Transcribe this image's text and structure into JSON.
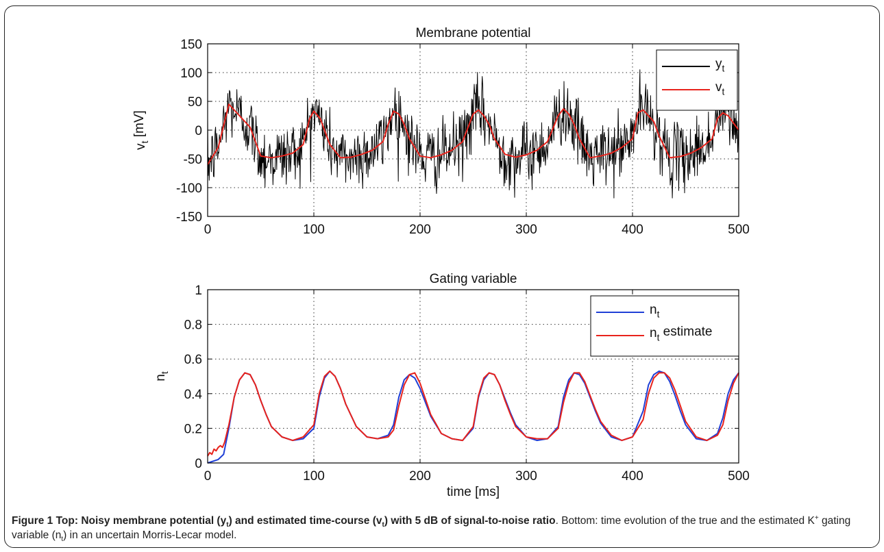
{
  "chart_data": [
    {
      "type": "line",
      "title": "Membrane potential",
      "xlabel": "",
      "ylabel": {
        "main": "v",
        "sub": "t",
        "unit": " [mV]"
      },
      "xlim": [
        0,
        500
      ],
      "ylim": [
        -150,
        150
      ],
      "xticks": [
        0,
        100,
        200,
        300,
        400,
        500
      ],
      "yticks": [
        -150,
        -100,
        -50,
        0,
        50,
        100,
        150
      ],
      "grid": true,
      "legend_position": "top-right",
      "series": [
        {
          "name": {
            "main": "y",
            "sub": "t"
          },
          "color": "#000000",
          "style": "noisy observation of v_t",
          "noise_std_mV": 28,
          "x_step_ms": 0.5
        },
        {
          "name": {
            "main": "v",
            "sub": "t"
          },
          "color": "#e8231c",
          "x": [
            0,
            10,
            20,
            30,
            40,
            50,
            60,
            70,
            80,
            90,
            96,
            100,
            106,
            110,
            115,
            125,
            135,
            145,
            155,
            165,
            170,
            175,
            180,
            185,
            190,
            200,
            210,
            220,
            230,
            240,
            250,
            255,
            260,
            265,
            270,
            280,
            290,
            300,
            310,
            320,
            330,
            335,
            340,
            345,
            350,
            360,
            370,
            380,
            390,
            400,
            405,
            410,
            415,
            420,
            425,
            435,
            445,
            455,
            465,
            475,
            480,
            485,
            490,
            500
          ],
          "y": [
            -60,
            -30,
            45,
            25,
            5,
            -45,
            -48,
            -45,
            -40,
            -25,
            20,
            33,
            20,
            0,
            -25,
            -48,
            -47,
            -42,
            -35,
            -20,
            10,
            33,
            28,
            10,
            -15,
            -45,
            -48,
            -43,
            -35,
            -20,
            28,
            35,
            25,
            10,
            -15,
            -42,
            -47,
            -43,
            -35,
            -20,
            25,
            37,
            28,
            10,
            -15,
            -48,
            -45,
            -40,
            -30,
            -15,
            30,
            35,
            25,
            15,
            -10,
            -48,
            -46,
            -40,
            -30,
            -15,
            20,
            30,
            25,
            0
          ]
        }
      ]
    },
    {
      "type": "line",
      "title": "Gating variable",
      "xlabel": "time [ms]",
      "ylabel": {
        "main": "n",
        "sub": "t",
        "unit": ""
      },
      "xlim": [
        0,
        500
      ],
      "ylim": [
        0,
        1
      ],
      "xticks": [
        0,
        100,
        200,
        300,
        400,
        500
      ],
      "yticks": [
        0,
        0.2,
        0.4,
        0.6,
        0.8,
        1
      ],
      "grid": true,
      "legend_position": "top-right",
      "series": [
        {
          "name": {
            "main": "n",
            "sub": "t",
            "extra": ""
          },
          "color": "#1f3fd6",
          "x": [
            0,
            5,
            10,
            15,
            20,
            25,
            30,
            35,
            40,
            45,
            50,
            55,
            60,
            70,
            80,
            90,
            100,
            105,
            110,
            115,
            120,
            125,
            130,
            140,
            150,
            160,
            170,
            175,
            180,
            185,
            190,
            195,
            200,
            205,
            210,
            220,
            230,
            240,
            250,
            255,
            260,
            265,
            270,
            275,
            280,
            285,
            290,
            300,
            310,
            320,
            330,
            335,
            340,
            345,
            350,
            355,
            360,
            365,
            370,
            380,
            390,
            400,
            410,
            415,
            420,
            425,
            430,
            435,
            440,
            445,
            450,
            460,
            470,
            480,
            485,
            490,
            495,
            500
          ],
          "y": [
            0.0,
            0.01,
            0.02,
            0.05,
            0.2,
            0.38,
            0.48,
            0.52,
            0.51,
            0.45,
            0.36,
            0.28,
            0.21,
            0.15,
            0.13,
            0.14,
            0.2,
            0.38,
            0.49,
            0.53,
            0.5,
            0.43,
            0.34,
            0.21,
            0.15,
            0.14,
            0.16,
            0.22,
            0.38,
            0.48,
            0.51,
            0.49,
            0.43,
            0.35,
            0.27,
            0.17,
            0.14,
            0.13,
            0.2,
            0.38,
            0.48,
            0.52,
            0.51,
            0.45,
            0.37,
            0.29,
            0.22,
            0.15,
            0.13,
            0.14,
            0.21,
            0.38,
            0.48,
            0.52,
            0.51,
            0.46,
            0.38,
            0.3,
            0.23,
            0.15,
            0.13,
            0.15,
            0.3,
            0.45,
            0.51,
            0.53,
            0.52,
            0.47,
            0.39,
            0.3,
            0.22,
            0.14,
            0.13,
            0.17,
            0.26,
            0.4,
            0.48,
            0.52
          ]
        },
        {
          "name": {
            "main": "n",
            "sub": "t",
            "extra": " estimate"
          },
          "color": "#e8231c",
          "x": [
            0,
            2,
            4,
            6,
            8,
            10,
            12,
            14,
            16,
            20,
            25,
            30,
            35,
            40,
            45,
            50,
            55,
            60,
            70,
            80,
            90,
            100,
            105,
            110,
            115,
            120,
            125,
            130,
            140,
            150,
            160,
            170,
            175,
            180,
            185,
            190,
            195,
            200,
            205,
            210,
            220,
            230,
            240,
            250,
            255,
            260,
            265,
            270,
            275,
            280,
            285,
            290,
            300,
            310,
            320,
            330,
            335,
            340,
            345,
            350,
            355,
            360,
            365,
            370,
            380,
            390,
            400,
            410,
            415,
            420,
            425,
            430,
            435,
            440,
            445,
            450,
            460,
            470,
            480,
            485,
            490,
            495,
            500
          ],
          "y": [
            0.04,
            0.06,
            0.05,
            0.08,
            0.07,
            0.09,
            0.1,
            0.09,
            0.12,
            0.22,
            0.38,
            0.48,
            0.52,
            0.51,
            0.45,
            0.36,
            0.28,
            0.21,
            0.15,
            0.13,
            0.15,
            0.22,
            0.4,
            0.5,
            0.53,
            0.5,
            0.43,
            0.34,
            0.21,
            0.15,
            0.14,
            0.15,
            0.19,
            0.33,
            0.45,
            0.51,
            0.52,
            0.46,
            0.37,
            0.28,
            0.17,
            0.14,
            0.13,
            0.21,
            0.39,
            0.49,
            0.52,
            0.51,
            0.45,
            0.36,
            0.28,
            0.21,
            0.15,
            0.14,
            0.14,
            0.2,
            0.35,
            0.46,
            0.52,
            0.52,
            0.47,
            0.39,
            0.31,
            0.24,
            0.16,
            0.13,
            0.15,
            0.25,
            0.4,
            0.49,
            0.52,
            0.52,
            0.49,
            0.42,
            0.33,
            0.24,
            0.15,
            0.13,
            0.16,
            0.22,
            0.36,
            0.46,
            0.52
          ]
        }
      ]
    }
  ],
  "caption": {
    "label": "Figure 1",
    "bold_parts": [
      "Top: Noisy membrane potential (y",
      "t",
      ") and estimated time-course (v",
      "t",
      ") with 5 dB of signal-to-noise ratio"
    ],
    "rest_parts": [
      ". Bottom: time evolution of the true and the estimated K",
      "+",
      " gating variable (n",
      "t",
      ") in an uncertain Morris-Lecar model."
    ]
  }
}
